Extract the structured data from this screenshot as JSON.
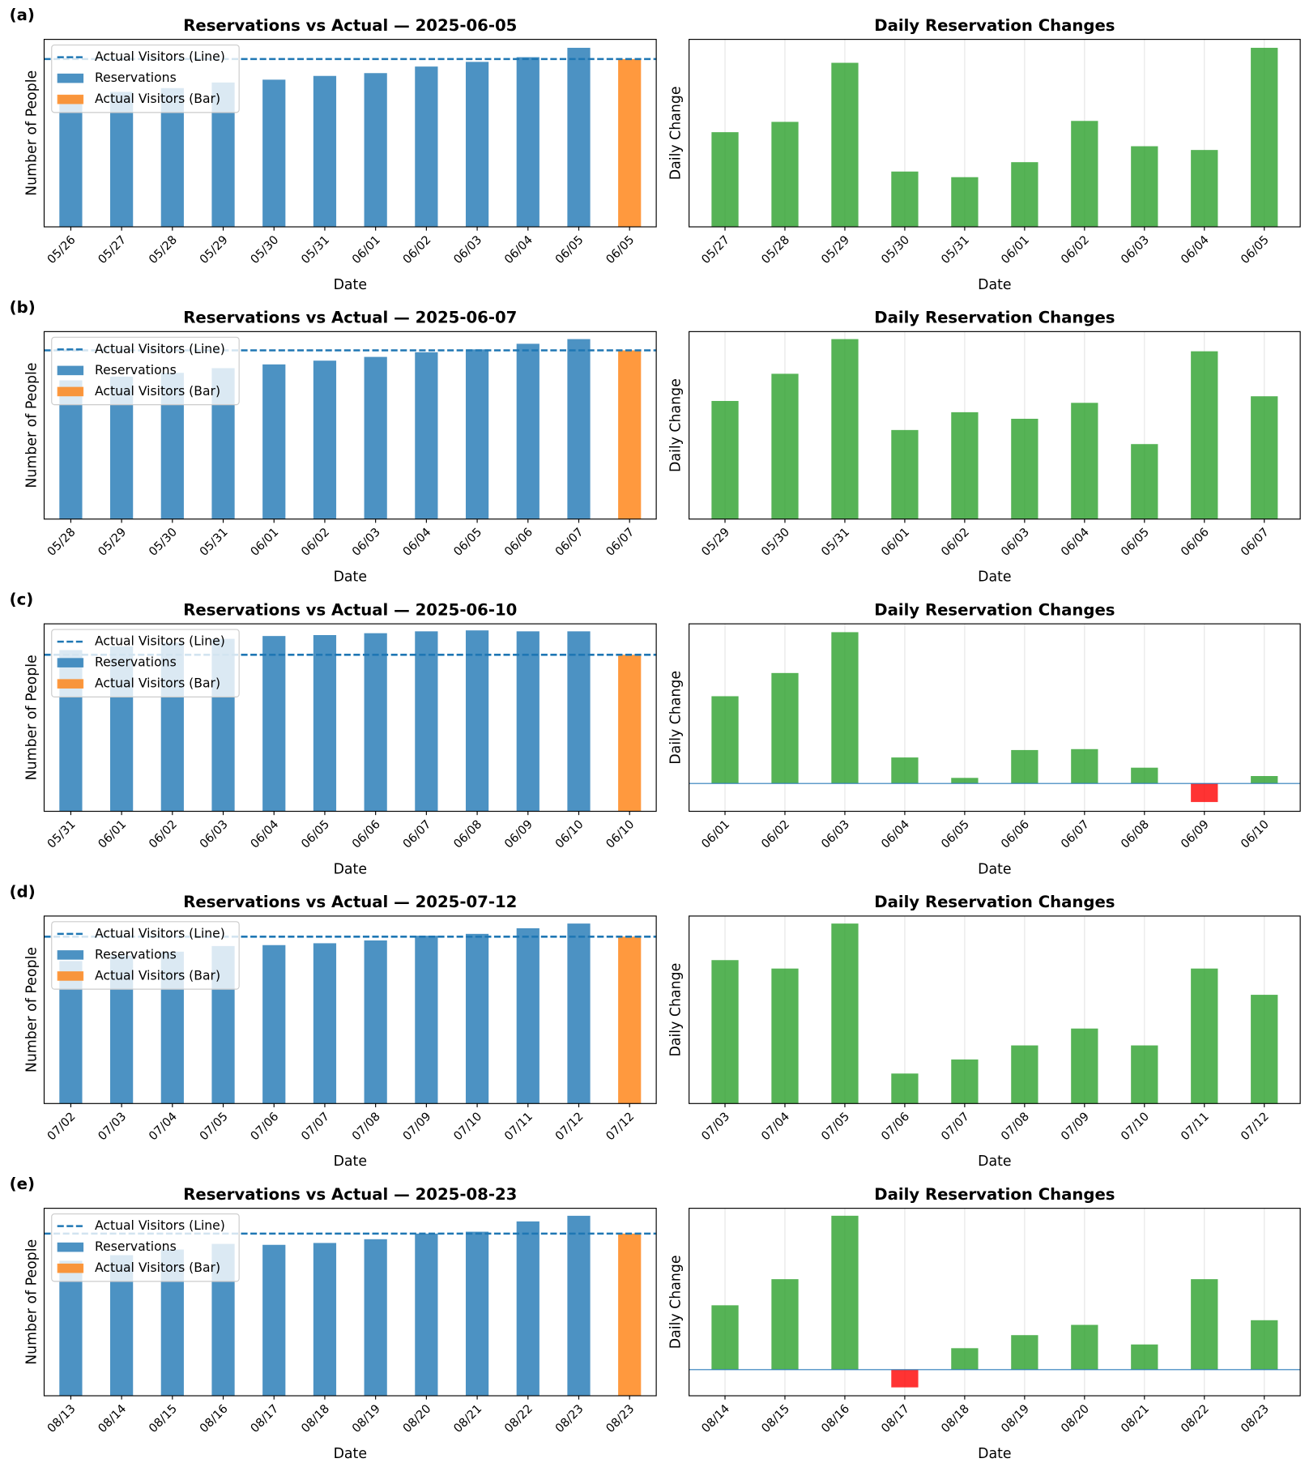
{
  "chart_data": [
    {
      "type": "bar",
      "panel": "(a)",
      "title": "Reservations vs Actual — 2025-06-05",
      "xlabel": "Date",
      "ylabel": "Number of People",
      "categories": [
        "05/26",
        "05/27",
        "05/28",
        "05/29",
        "05/30",
        "05/31",
        "06/01",
        "06/02",
        "06/03",
        "06/04",
        "06/05",
        "06/05"
      ],
      "series": [
        {
          "name": "Reservations",
          "color": "#1f77b4",
          "values": [
            70,
            72,
            74,
            77,
            78.5,
            80.5,
            82,
            85.5,
            88,
            90.5,
            95.5,
            null
          ]
        },
        {
          "name": "Actual Visitors (Bar)",
          "color": "#ff7f0e",
          "values": [
            null,
            null,
            null,
            null,
            null,
            null,
            null,
            null,
            null,
            null,
            null,
            89.5
          ]
        }
      ],
      "reference_line": {
        "name": "Actual Visitors (Line)",
        "color": "#1f77b4",
        "value": 89.5,
        "style": "dashed"
      },
      "ylim": [
        0,
        100
      ],
      "legend": "upper left"
    },
    {
      "type": "change_bar",
      "title": "Daily Reservation Changes",
      "xlabel": "Date",
      "ylabel": "Daily Change",
      "categories": [
        "05/27",
        "05/28",
        "05/29",
        "05/30",
        "05/31",
        "06/01",
        "06/02",
        "06/03",
        "06/04",
        "06/05"
      ],
      "values": [
        50.5,
        56,
        87.5,
        29.5,
        26.5,
        34.5,
        56.5,
        43,
        41,
        95.5
      ],
      "positive_color": "#2ca02c",
      "negative_color": "#ff0000",
      "ylim": [
        0,
        100
      ],
      "grid": "x",
      "zero_line": false
    },
    {
      "type": "bar",
      "panel": "(b)",
      "title": "Reservations vs Actual — 2025-06-07",
      "xlabel": "Date",
      "ylabel": "Number of People",
      "categories": [
        "05/28",
        "05/29",
        "05/30",
        "05/31",
        "06/01",
        "06/02",
        "06/03",
        "06/04",
        "06/05",
        "06/06",
        "06/07",
        "06/07"
      ],
      "series": [
        {
          "name": "Reservations",
          "color": "#1f77b4",
          "values": [
            74,
            76,
            78,
            80.5,
            82.5,
            84.5,
            86.5,
            89,
            90.5,
            93.5,
            96,
            null
          ]
        },
        {
          "name": "Actual Visitors (Bar)",
          "color": "#ff7f0e",
          "values": [
            null,
            null,
            null,
            null,
            null,
            null,
            null,
            null,
            null,
            null,
            null,
            90
          ]
        }
      ],
      "reference_line": {
        "name": "Actual Visitors (Line)",
        "color": "#1f77b4",
        "value": 90,
        "style": "dashed"
      },
      "ylim": [
        0,
        100
      ],
      "legend": "upper left"
    },
    {
      "type": "change_bar",
      "title": "Daily Reservation Changes",
      "xlabel": "Date",
      "ylabel": "Daily Change",
      "categories": [
        "05/29",
        "05/30",
        "05/31",
        "06/01",
        "06/02",
        "06/03",
        "06/04",
        "06/05",
        "06/06",
        "06/07"
      ],
      "values": [
        63,
        77.5,
        96,
        47.5,
        57,
        53.5,
        62,
        40,
        89.5,
        65.5
      ],
      "positive_color": "#2ca02c",
      "negative_color": "#ff0000",
      "ylim": [
        0,
        100
      ],
      "grid": "x",
      "zero_line": false
    },
    {
      "type": "bar",
      "panel": "(c)",
      "title": "Reservations vs Actual — 2025-06-10",
      "xlabel": "Date",
      "ylabel": "Number of People",
      "categories": [
        "05/31",
        "06/01",
        "06/02",
        "06/03",
        "06/04",
        "06/05",
        "06/06",
        "06/07",
        "06/08",
        "06/09",
        "06/10",
        "06/10"
      ],
      "series": [
        {
          "name": "Reservations",
          "color": "#1f77b4",
          "values": [
            86,
            88,
            90,
            92,
            93.5,
            94,
            95,
            96,
            96.5,
            96,
            96,
            null
          ]
        },
        {
          "name": "Actual Visitors (Bar)",
          "color": "#ff7f0e",
          "values": [
            null,
            null,
            null,
            null,
            null,
            null,
            null,
            null,
            null,
            null,
            null,
            83.5
          ]
        }
      ],
      "reference_line": {
        "name": "Actual Visitors (Line)",
        "color": "#1f77b4",
        "value": 83.5,
        "style": "dashed"
      },
      "ylim": [
        0,
        100
      ],
      "legend": "upper left"
    },
    {
      "type": "change_bar",
      "title": "Daily Reservation Changes",
      "xlabel": "Date",
      "ylabel": "Daily Change",
      "categories": [
        "06/01",
        "06/02",
        "06/03",
        "06/04",
        "06/05",
        "06/06",
        "06/07",
        "06/08",
        "06/09",
        "06/10"
      ],
      "values": [
        47,
        59.5,
        81.5,
        14,
        3,
        18,
        18.5,
        8.5,
        -10,
        4
      ],
      "positive_color": "#2ca02c",
      "negative_color": "#ff0000",
      "ylim": [
        -15,
        86
      ],
      "grid": "x",
      "zero_line": true
    },
    {
      "type": "bar",
      "panel": "(d)",
      "title": "Reservations vs Actual — 2025-07-12",
      "xlabel": "Date",
      "ylabel": "Number of People",
      "categories": [
        "07/02",
        "07/03",
        "07/04",
        "07/05",
        "07/06",
        "07/07",
        "07/08",
        "07/09",
        "07/10",
        "07/11",
        "07/12",
        "07/12"
      ],
      "series": [
        {
          "name": "Reservations",
          "color": "#1f77b4",
          "values": [
            76,
            79,
            81,
            84,
            84.5,
            85.5,
            87,
            89.5,
            90.5,
            93.5,
            96,
            null
          ]
        },
        {
          "name": "Actual Visitors (Bar)",
          "color": "#ff7f0e",
          "values": [
            null,
            null,
            null,
            null,
            null,
            null,
            null,
            null,
            null,
            null,
            null,
            89
          ]
        }
      ],
      "reference_line": {
        "name": "Actual Visitors (Line)",
        "color": "#1f77b4",
        "value": 89,
        "style": "dashed"
      },
      "ylim": [
        0,
        100
      ],
      "legend": "upper left"
    },
    {
      "type": "change_bar",
      "title": "Daily Reservation Changes",
      "xlabel": "Date",
      "ylabel": "Daily Change",
      "categories": [
        "07/03",
        "07/04",
        "07/05",
        "07/06",
        "07/07",
        "07/08",
        "07/09",
        "07/10",
        "07/11",
        "07/12"
      ],
      "values": [
        76.5,
        72,
        96,
        16,
        23.5,
        31,
        40,
        31,
        72,
        58
      ],
      "positive_color": "#2ca02c",
      "negative_color": "#ff0000",
      "ylim": [
        0,
        100
      ],
      "grid": "x",
      "zero_line": false
    },
    {
      "type": "bar",
      "panel": "(e)",
      "title": "Reservations vs Actual — 2025-08-23",
      "xlabel": "Date",
      "ylabel": "Number of People",
      "categories": [
        "08/13",
        "08/14",
        "08/15",
        "08/16",
        "08/17",
        "08/18",
        "08/19",
        "08/20",
        "08/21",
        "08/22",
        "08/23",
        "08/23"
      ],
      "series": [
        {
          "name": "Reservations",
          "color": "#1f77b4",
          "values": [
            72,
            75,
            78,
            81,
            80.5,
            81.5,
            83.5,
            86.5,
            87.5,
            93,
            96,
            null
          ]
        },
        {
          "name": "Actual Visitors (Bar)",
          "color": "#ff7f0e",
          "values": [
            null,
            null,
            null,
            null,
            null,
            null,
            null,
            null,
            null,
            null,
            null,
            86.5
          ]
        }
      ],
      "reference_line": {
        "name": "Actual Visitors (Line)",
        "color": "#1f77b4",
        "value": 86.5,
        "style": "dashed"
      },
      "ylim": [
        0,
        100
      ],
      "legend": "upper left"
    },
    {
      "type": "change_bar",
      "title": "Daily Reservation Changes",
      "xlabel": "Date",
      "ylabel": "Daily Change",
      "categories": [
        "08/14",
        "08/15",
        "08/16",
        "08/17",
        "08/18",
        "08/19",
        "08/20",
        "08/21",
        "08/22",
        "08/23"
      ],
      "values": [
        34.5,
        48.5,
        82.5,
        -9.5,
        11.5,
        18.5,
        24,
        13.5,
        48.5,
        26.5
      ],
      "positive_color": "#2ca02c",
      "negative_color": "#ff0000",
      "ylim": [
        -14,
        86.5
      ],
      "grid": "x",
      "zero_line": true
    }
  ]
}
